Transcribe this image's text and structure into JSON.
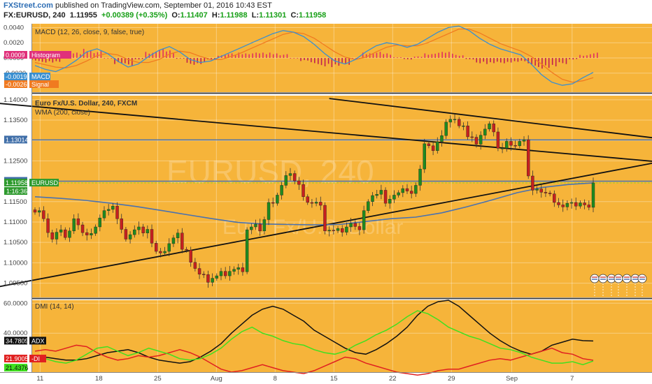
{
  "header": {
    "brand": "FXStreet.com",
    "published": " published on TradingView.com, September 01, 2016 10:43 EST",
    "symbol": "FX:EURUSD, 240",
    "last": "1.11955",
    "change": "+0.00389 (+0.35%)",
    "o_label": "O:",
    "o_val": "1.11407",
    "h_label": "H:",
    "h_val": "1.11988",
    "l_label": "L:",
    "l_val": "1.11301",
    "c_label": "C:",
    "c_val": "1.11958"
  },
  "watermark": {
    "big": "EURUSD, 240",
    "small": "Euro Fx/U.S. Dollar"
  },
  "colors": {
    "background": "#f6b43a",
    "up": "#1f8a1f",
    "down": "#c62020",
    "wma": "#4a72b0",
    "macd": "#3a8fd0",
    "signal": "#f07a20",
    "adx": "#111111",
    "minus_di": "#e02020",
    "plus_di": "#40e020"
  },
  "chart_data": [
    {
      "type": "line",
      "panel": "MACD",
      "title": "MACD (12, 26, close, 9, false, true)",
      "ylim": [
        -0.0045,
        0.0045
      ],
      "y_ticks": [
        "0.0040",
        "0.0020",
        "0.0000",
        "-0.0020"
      ],
      "value_labels": {
        "histogram": "0.0009",
        "macd": "-0.0019",
        "signal": "-0.0026"
      },
      "legend": {
        "histogram": "Histogram",
        "macd": "MACD",
        "signal": "Signal"
      },
      "series": [
        {
          "name": "MACD",
          "values": [
            -0.001,
            -0.0015,
            -0.0018,
            -0.0012,
            -0.0003,
            0.0008,
            0.0012,
            0.0006,
            -0.0004,
            -0.0012,
            -0.0008,
            0.0002,
            0.001,
            0.0015,
            0.0008,
            -0.0002,
            -0.0006,
            -0.0004,
            0.0002,
            0.0008,
            0.0014,
            0.002,
            0.0026,
            0.0032,
            0.0036,
            0.0034,
            0.0028,
            0.0018,
            0.0006,
            -0.0004,
            -0.0008,
            -0.0002,
            0.0008,
            0.0016,
            0.002,
            0.0018,
            0.0014,
            0.0018,
            0.0026,
            0.0034,
            0.004,
            0.0042,
            0.0036,
            0.0026,
            0.0018,
            0.0012,
            0.0008,
            0.0004,
            -0.0008,
            -0.0022,
            -0.0032,
            -0.0036,
            -0.0034,
            -0.0026,
            -0.0019
          ]
        },
        {
          "name": "Signal",
          "values": [
            -0.0006,
            -0.0009,
            -0.0012,
            -0.0013,
            -0.001,
            -0.0004,
            0.0003,
            0.0006,
            0.0004,
            -0.0002,
            -0.0006,
            -0.0006,
            -0.0002,
            0.0005,
            0.0009,
            0.0007,
            0.0002,
            -0.0002,
            -0.0002,
            0.0002,
            0.0007,
            0.0013,
            0.0019,
            0.0025,
            0.0031,
            0.0034,
            0.0032,
            0.0026,
            0.0017,
            0.0008,
            0.0001,
            -0.0002,
            0.0001,
            0.0008,
            0.0014,
            0.0017,
            0.0016,
            0.0016,
            0.002,
            0.0026,
            0.0032,
            0.0038,
            0.0038,
            0.0033,
            0.0026,
            0.0019,
            0.0014,
            0.0009,
            0.0002,
            -0.0008,
            -0.0019,
            -0.0028,
            -0.0032,
            -0.003,
            -0.0026
          ]
        }
      ]
    },
    {
      "type": "candlestick",
      "panel": "Price",
      "title": "Euro Fx/U.S. Dollar, 240, FXCM",
      "subtitle": "WMA (200, close)",
      "ylim": [
        1.0915,
        1.141
      ],
      "y_ticks": [
        "1.14000",
        "1.13500",
        "1.13000",
        "1.12500",
        "1.12000",
        "1.11500",
        "1.11000",
        "1.10500",
        "1.10000",
        "1.09500"
      ],
      "x_ticks": [
        "11",
        "18",
        "25",
        "Aug",
        "8",
        "15",
        "22",
        "29",
        "Sep",
        "7"
      ],
      "x_tick_index": [
        5,
        42,
        79,
        116,
        153,
        190,
        227,
        264,
        302,
        340
      ],
      "price_labels": {
        "h1": "1.13014",
        "h2": "1.12001",
        "current": "1.11958",
        "symbol": "EURUSD",
        "countdown": "1:16:36"
      },
      "levels": [
        1.13014,
        1.12001
      ],
      "current": 1.11958,
      "wma": [
        1.1162,
        1.1158,
        1.1153,
        1.1146,
        1.1138,
        1.1128,
        1.1118,
        1.1108,
        1.1099,
        1.1095,
        1.1094,
        1.1093,
        1.1094,
        1.1101,
        1.1108,
        1.1112,
        1.1122,
        1.1137,
        1.1154,
        1.1172,
        1.1185,
        1.1192,
        1.1196
      ],
      "closes": [
        1.1124,
        1.1128,
        1.1108,
        1.1074,
        1.1058,
        1.1075,
        1.1081,
        1.1062,
        1.1078,
        1.1108,
        1.1093,
        1.1074,
        1.1068,
        1.1072,
        1.1088,
        1.111,
        1.1128,
        1.1131,
        1.1139,
        1.1108,
        1.1082,
        1.1058,
        1.1069,
        1.1081,
        1.1088,
        1.1073,
        1.1082,
        1.1048,
        1.1028,
        1.1024,
        1.1028,
        1.1047,
        1.1061,
        1.1073,
        1.1033,
        1.1031,
        1.1001,
        1.0986,
        1.0972,
        1.0971,
        1.0952,
        1.0962,
        1.0968,
        1.0979,
        1.0968,
        1.0979,
        1.0984,
        1.0988,
        1.0978,
        1.1081,
        1.1088,
        1.1095,
        1.1078,
        1.1106,
        1.1148,
        1.1146,
        1.1166,
        1.119,
        1.1214,
        1.1219,
        1.1201,
        1.1192,
        1.1162,
        1.1148,
        1.1146,
        1.1149,
        1.1141,
        1.1078,
        1.108,
        1.1079,
        1.1084,
        1.1075,
        1.1088,
        1.1097,
        1.1089,
        1.1081,
        1.1128,
        1.115,
        1.1165,
        1.1168,
        1.1178,
        1.1146,
        1.1156,
        1.1166,
        1.1172,
        1.1182,
        1.1176,
        1.117,
        1.119,
        1.123,
        1.1292,
        1.1287,
        1.1275,
        1.1297,
        1.1312,
        1.1345,
        1.1352,
        1.1352,
        1.1336,
        1.1336,
        1.1309,
        1.1308,
        1.1291,
        1.1313,
        1.1328,
        1.1341,
        1.1321,
        1.1281,
        1.1281,
        1.1298,
        1.1288,
        1.1287,
        1.1298,
        1.1302,
        1.1213,
        1.1178,
        1.1181,
        1.1173,
        1.1171,
        1.1169,
        1.1148,
        1.1142,
        1.1137,
        1.1146,
        1.1148,
        1.1139,
        1.1147,
        1.1142,
        1.1136,
        1.1196
      ]
    },
    {
      "type": "line",
      "panel": "DMI",
      "title": "DMI (14, 14)",
      "ylim": [
        14,
        62
      ],
      "y_ticks": [
        "60.0000",
        "40.0000"
      ],
      "value_labels": {
        "adx": "34.7809",
        "minus_di": "21.9005",
        "plus_di": "21.4376"
      },
      "legend": {
        "adx": "ADX",
        "minus_di": "-DI",
        "plus_di": "+DI"
      },
      "series": [
        {
          "name": "ADX",
          "values": [
            25,
            24,
            23,
            22,
            22,
            23,
            25,
            27,
            28,
            29,
            27,
            24,
            22,
            21,
            20,
            21,
            24,
            28,
            33,
            40,
            46,
            52,
            56,
            58,
            56,
            52,
            48,
            42,
            38,
            34,
            30,
            27,
            26,
            29,
            33,
            38,
            44,
            52,
            58,
            61,
            62,
            58,
            52,
            46,
            40,
            35,
            31,
            28,
            26,
            28,
            32,
            34,
            36,
            35,
            34.78
          ]
        },
        {
          "name": "-DI",
          "values": [
            28,
            29,
            28,
            30,
            32,
            31,
            27,
            24,
            22,
            23,
            25,
            24,
            25,
            27,
            29,
            27,
            24,
            20,
            16,
            14,
            15,
            17,
            19,
            17,
            15,
            14,
            13,
            15,
            18,
            21,
            24,
            23,
            20,
            18,
            16,
            14,
            13,
            12,
            13,
            15,
            16,
            16,
            18,
            20,
            22,
            23,
            22,
            24,
            26,
            28,
            30,
            27,
            26,
            23,
            21.9
          ]
        },
        {
          "name": "+DI",
          "values": [
            25,
            23,
            21,
            20,
            22,
            26,
            30,
            31,
            28,
            25,
            27,
            30,
            28,
            26,
            23,
            22,
            23,
            26,
            30,
            36,
            41,
            44,
            40,
            38,
            35,
            33,
            32,
            29,
            27,
            26,
            28,
            32,
            35,
            39,
            42,
            46,
            51,
            55,
            53,
            49,
            44,
            41,
            38,
            36,
            33,
            30,
            29,
            27,
            24,
            22,
            20,
            20,
            21,
            19,
            21.44
          ]
        }
      ]
    }
  ]
}
